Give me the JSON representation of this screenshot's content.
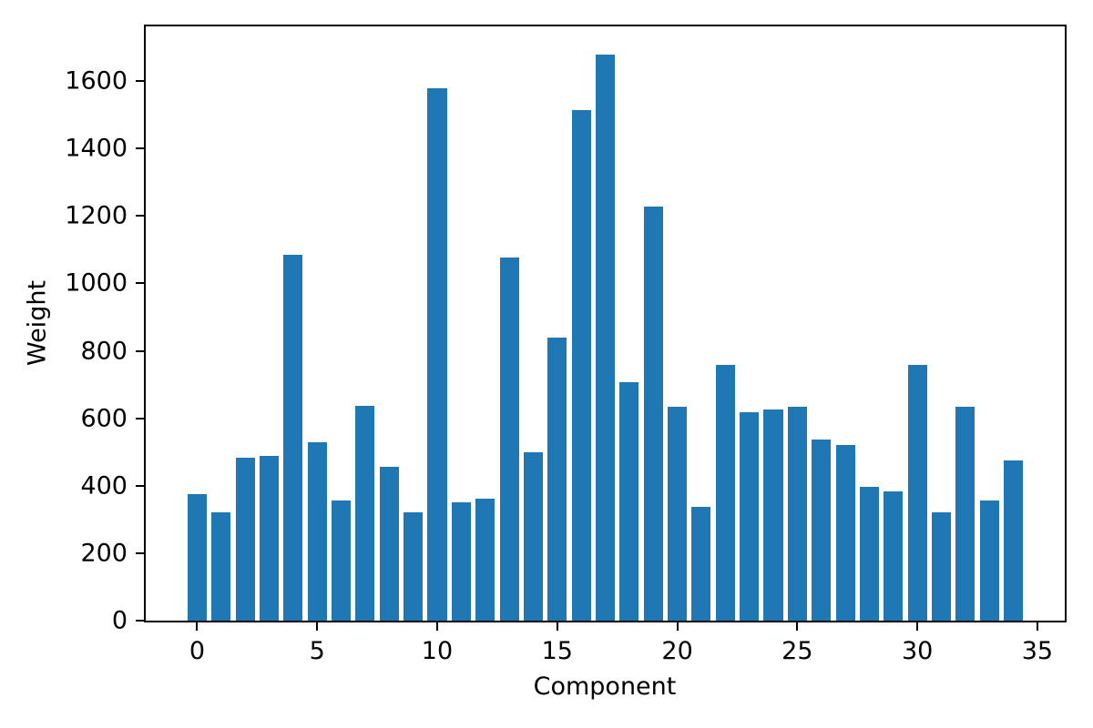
{
  "chart_data": {
    "type": "bar",
    "title": "",
    "xlabel": "Component",
    "ylabel": "Weight",
    "bar_color": "#1f77b4",
    "bar_width": 0.8,
    "x": [
      0,
      1,
      2,
      3,
      4,
      5,
      6,
      7,
      8,
      9,
      10,
      11,
      12,
      13,
      14,
      15,
      16,
      17,
      18,
      19,
      20,
      21,
      22,
      23,
      24,
      25,
      26,
      27,
      28,
      29,
      30,
      31,
      32,
      33,
      34
    ],
    "values": [
      376,
      320,
      484,
      488,
      1086,
      530,
      357,
      636,
      456,
      320,
      1578,
      352,
      361,
      1077,
      500,
      840,
      1515,
      1678,
      707,
      1227,
      634,
      338,
      757,
      618,
      627,
      635,
      538,
      521,
      397,
      384,
      757,
      322,
      633,
      355,
      476
    ],
    "xticks": [
      0,
      5,
      10,
      15,
      20,
      25,
      30,
      35
    ],
    "yticks": [
      0,
      200,
      400,
      600,
      800,
      1000,
      1200,
      1400,
      1600
    ],
    "xlim": [
      -2.14,
      36.14
    ],
    "ylim": [
      0,
      1762
    ],
    "grid": false,
    "legend": null,
    "axis_color": "#000000",
    "background_color": "#ffffff"
  }
}
